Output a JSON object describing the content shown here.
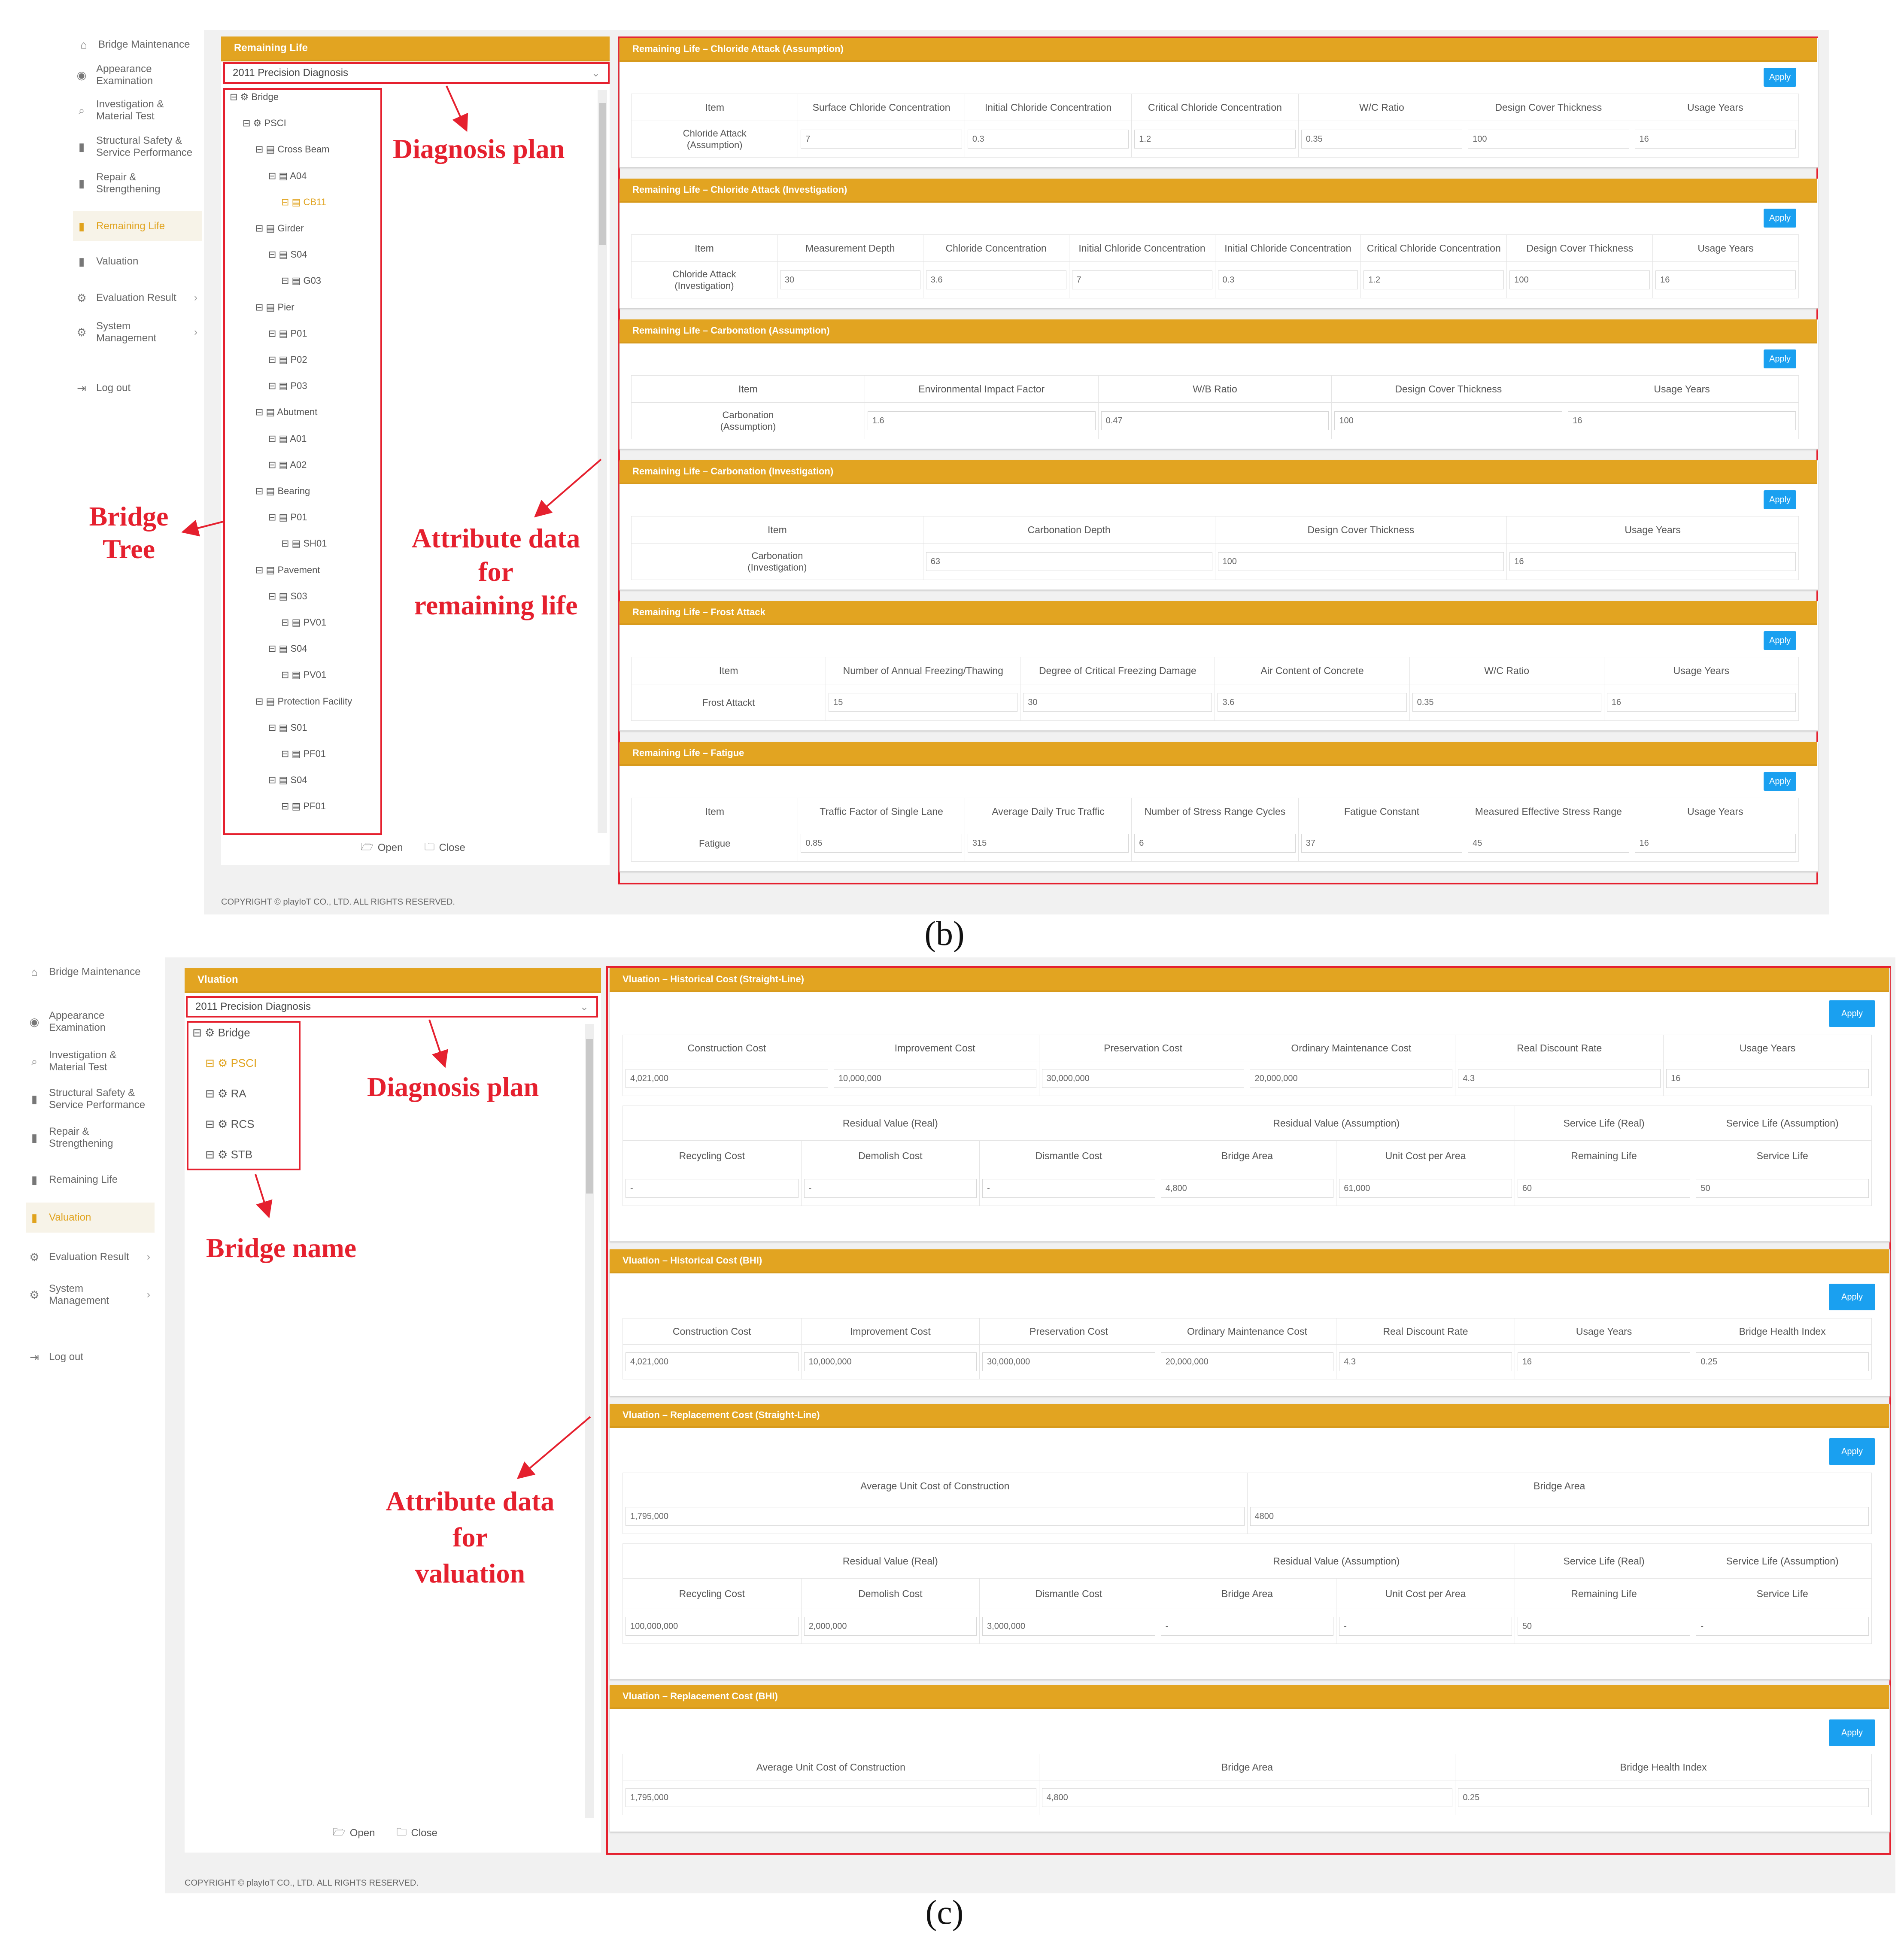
{
  "sidebar": {
    "home": "Bridge Maintenance",
    "items": [
      {
        "label": "Appearance\nExamination",
        "icon": "eye-icon"
      },
      {
        "label": "Investigation &\nMaterial Test",
        "icon": "search-icon"
      },
      {
        "label": "Structural Safety &\nService Performance",
        "icon": "building-icon"
      },
      {
        "label": "Repair &\nStrengthening",
        "icon": "building-icon"
      },
      {
        "label": "Remaining Life",
        "icon": "building-icon"
      },
      {
        "label": "Valuation",
        "icon": "building-icon"
      },
      {
        "label": "Evaluation Result",
        "icon": "gear-icon",
        "chevron": "›"
      },
      {
        "label": "System\nManagement",
        "icon": "gear-icon",
        "chevron": "›"
      },
      {
        "label": "Log out",
        "icon": "logout-icon"
      }
    ]
  },
  "panel_b": {
    "header": "Remaining Life",
    "plan": "2011 Precision Diagnosis",
    "tree": [
      {
        "label": "Bridge",
        "level": 0
      },
      {
        "label": "PSCI",
        "level": 1
      },
      {
        "label": "Cross Beam",
        "level": 2
      },
      {
        "label": "A04",
        "level": 3
      },
      {
        "label": "CB11",
        "level": 4,
        "selected": true
      },
      {
        "label": "Girder",
        "level": 2
      },
      {
        "label": "S04",
        "level": 3
      },
      {
        "label": "G03",
        "level": 4
      },
      {
        "label": "Pier",
        "level": 2
      },
      {
        "label": "P01",
        "level": 3
      },
      {
        "label": "P02",
        "level": 3
      },
      {
        "label": "P03",
        "level": 3
      },
      {
        "label": "Abutment",
        "level": 2
      },
      {
        "label": "A01",
        "level": 3
      },
      {
        "label": "A02",
        "level": 3
      },
      {
        "label": "Bearing",
        "level": 2
      },
      {
        "label": "P01",
        "level": 3
      },
      {
        "label": "SH01",
        "level": 4
      },
      {
        "label": "Pavement",
        "level": 2
      },
      {
        "label": "S03",
        "level": 3
      },
      {
        "label": "PV01",
        "level": 4
      },
      {
        "label": "S04",
        "level": 3
      },
      {
        "label": "PV01",
        "level": 4
      },
      {
        "label": "Protection Facility",
        "level": 2
      },
      {
        "label": "S01",
        "level": 3
      },
      {
        "label": "PF01",
        "level": 4
      },
      {
        "label": "S04",
        "level": 3
      },
      {
        "label": "PF01",
        "level": 4
      }
    ],
    "open_label": "Open",
    "close_label": "Close",
    "annot_plan": "Diagnosis plan",
    "annot_tree": "Bridge\nTree",
    "annot_attr": "Attribute data\nfor\nremaining life",
    "copyright": "COPYRIGHT © playIoT CO., LTD. ALL RIGHTS RESERVED.",
    "caption": "(b)",
    "apply_label": "Apply",
    "sections": [
      {
        "title": "Remaining Life – Chloride Attack (Assumption)",
        "headers": [
          "Item",
          "Surface Chloride Concentration",
          "Initial Chloride Concentration",
          "Critical Chloride Concentration",
          "W/C Ratio",
          "Design Cover Thickness",
          "Usage Years"
        ],
        "row_label": "Chloride Attack\n(Assumption)",
        "values": [
          "7",
          "0.3",
          "1.2",
          "0.35",
          "100",
          "16"
        ]
      },
      {
        "title": "Remaining Life – Chloride Attack (Investigation)",
        "headers": [
          "Item",
          "Measurement Depth",
          "Chloride Concentration",
          "Initial Chloride Concentration",
          "Initial Chloride Concentration",
          "Critical Chloride Concentration",
          "Design Cover Thickness",
          "Usage Years"
        ],
        "row_label": "Chloride Attack\n(Investigation)",
        "values": [
          "30",
          "3.6",
          "7",
          "0.3",
          "1.2",
          "100",
          "16"
        ]
      },
      {
        "title": "Remaining Life – Carbonation (Assumption)",
        "headers": [
          "Item",
          "Environmental Impact Factor",
          "W/B Ratio",
          "Design Cover Thickness",
          "Usage Years"
        ],
        "row_label": "Carbonation\n(Assumption)",
        "values": [
          "1.6",
          "0.47",
          "100",
          "16"
        ]
      },
      {
        "title": "Remaining Life – Carbonation (Investigation)",
        "headers": [
          "Item",
          "Carbonation Depth",
          "Design Cover Thickness",
          "Usage Years"
        ],
        "row_label": "Carbonation\n(Investigation)",
        "values": [
          "63",
          "100",
          "16"
        ]
      },
      {
        "title": "Remaining Life – Frost Attack",
        "headers": [
          "Item",
          "Number of Annual Freezing/Thawing",
          "Degree of Critical Freezing Damage",
          "Air Content of Concrete",
          "W/C Ratio",
          "Usage Years"
        ],
        "row_label": "Frost Attackt",
        "values": [
          "15",
          "30",
          "3.6",
          "0.35",
          "16"
        ]
      },
      {
        "title": "Remaining Life – Fatigue",
        "headers": [
          "Item",
          "Traffic Factor of Single Lane",
          "Average Daily Truc Traffic",
          "Number of Stress Range Cycles",
          "Fatigue Constant",
          "Measured Effective Stress Range",
          "Usage Years"
        ],
        "row_label": "Fatigue",
        "values": [
          "0.85",
          "315",
          "6",
          "37",
          "45",
          "16"
        ]
      }
    ]
  },
  "panel_c": {
    "header": "Vluation",
    "plan": "2011 Precision Diagnosis",
    "tree": [
      {
        "label": "Bridge",
        "level": 0
      },
      {
        "label": "PSCI",
        "level": 1,
        "selected": true
      },
      {
        "label": "RA",
        "level": 1
      },
      {
        "label": "RCS",
        "level": 1
      },
      {
        "label": "STB",
        "level": 1
      }
    ],
    "open_label": "Open",
    "close_label": "Close",
    "annot_plan": "Diagnosis plan",
    "annot_name": "Bridge name",
    "annot_attr": "Attribute data\nfor\nvaluation",
    "copyright": "COPYRIGHT © playIoT CO., LTD. ALL RIGHTS RESERVED.",
    "caption": "(c)",
    "apply_label": "Apply",
    "sec1": {
      "title": "Vluation – Historical Cost (Straight-Line)",
      "headers": [
        "Construction Cost",
        "Improvement Cost",
        "Preservation Cost",
        "Ordinary Maintenance Cost",
        "Real Discount Rate",
        "Usage Years"
      ],
      "values": [
        "4,021,000",
        "10,000,000",
        "30,000,000",
        "20,000,000",
        "4.3",
        "16"
      ],
      "groups": [
        "Residual Value (Real)",
        "Residual Value (Assumption)",
        "Service Life (Real)",
        "Service Life (Assumption)"
      ],
      "sub": [
        "Recycling Cost",
        "Demolish Cost",
        "Dismantle Cost",
        "Bridge Area",
        "Unit Cost per Area",
        "Remaining Life",
        "Service Life"
      ],
      "sub_values": [
        "-",
        "-",
        "-",
        "4,800",
        "61,000",
        "60",
        "50"
      ]
    },
    "sec2": {
      "title": "Vluation – Historical Cost (BHI)",
      "headers": [
        "Construction Cost",
        "Improvement Cost",
        "Preservation Cost",
        "Ordinary Maintenance Cost",
        "Real Discount Rate",
        "Usage Years",
        "Bridge Health Index"
      ],
      "values": [
        "4,021,000",
        "10,000,000",
        "30,000,000",
        "20,000,000",
        "4.3",
        "16",
        "0.25"
      ]
    },
    "sec3": {
      "title": "Vluation – Replacement Cost (Straight-Line)",
      "headers": [
        "Average Unit Cost of Construction",
        "Bridge Area"
      ],
      "values": [
        "1,795,000",
        "4800"
      ],
      "groups": [
        "Residual Value (Real)",
        "Residual Value (Assumption)",
        "Service Life (Real)",
        "Service Life (Assumption)"
      ],
      "sub": [
        "Recycling Cost",
        "Demolish Cost",
        "Dismantle Cost",
        "Bridge Area",
        "Unit Cost per Area",
        "Remaining Life",
        "Service Life"
      ],
      "sub_values": [
        "100,000,000",
        "2,000,000",
        "3,000,000",
        "-",
        "-",
        "50",
        "-"
      ]
    },
    "sec4": {
      "title": "Vluation – Replacement Cost (BHI)",
      "headers": [
        "Average Unit Cost of Construction",
        "Bridge Area",
        "Bridge Health Index"
      ],
      "values": [
        "1,795,000",
        "4,800",
        "0.25"
      ]
    }
  },
  "colors": {
    "accent": "#e2a421",
    "annotation": "#e5202e",
    "apply": "#1aa0f0"
  }
}
